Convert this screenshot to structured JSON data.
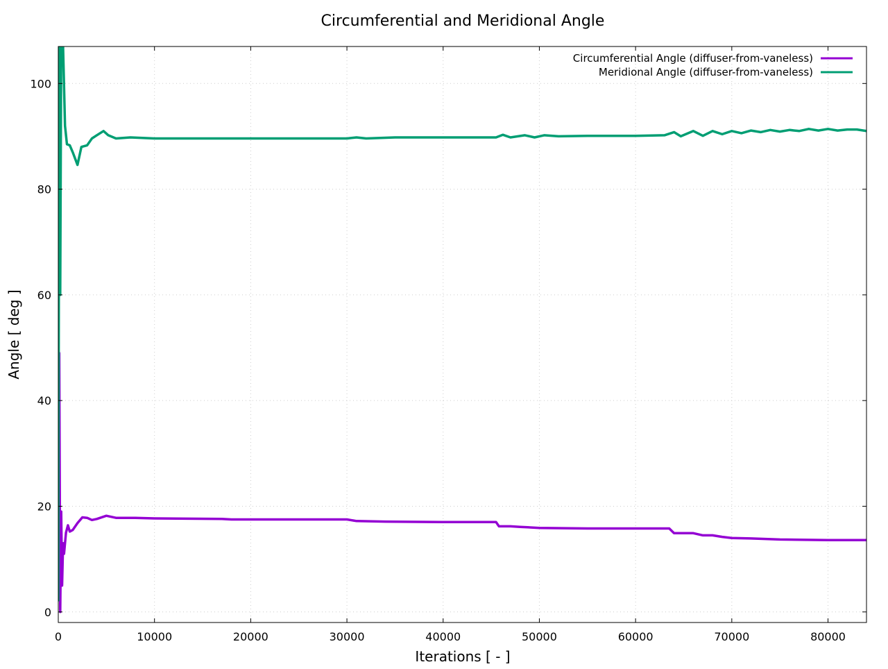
{
  "chart_data": {
    "type": "line",
    "title": "Circumferential and Meridional Angle",
    "xlabel": "Iterations [ - ]",
    "ylabel": "Angle [ deg ]",
    "xlim": [
      0,
      84000
    ],
    "ylim": [
      -2,
      107
    ],
    "xticks": [
      0,
      10000,
      20000,
      30000,
      40000,
      50000,
      60000,
      70000,
      80000
    ],
    "yticks": [
      0,
      20,
      40,
      60,
      80,
      100
    ],
    "grid": true,
    "legend_position": "top-right",
    "series": [
      {
        "name": "Circumferential Angle (diffuser-from-vaneless)",
        "color": "#9400d3",
        "x": [
          0,
          50,
          100,
          200,
          300,
          400,
          500,
          600,
          800,
          1000,
          1200,
          1500,
          2000,
          2500,
          3000,
          3500,
          4000,
          5000,
          6000,
          8000,
          10000,
          17000,
          18000,
          30000,
          31000,
          34000,
          40000,
          45500,
          45800,
          47000,
          48000,
          50000,
          55000,
          60000,
          63500,
          64000,
          66000,
          67000,
          68000,
          69000,
          70000,
          72000,
          75000,
          80000,
          84000
        ],
        "y": [
          36,
          3,
          49,
          0,
          19,
          5,
          13,
          11,
          15,
          16.4,
          15.2,
          15.5,
          16.8,
          17.9,
          17.8,
          17.4,
          17.6,
          18.2,
          17.8,
          17.8,
          17.7,
          17.6,
          17.5,
          17.5,
          17.2,
          17.1,
          17,
          17,
          16.2,
          16.2,
          16.1,
          15.9,
          15.8,
          15.8,
          15.8,
          14.9,
          14.9,
          14.5,
          14.5,
          14.2,
          14,
          13.9,
          13.7,
          13.6,
          13.6
        ]
      },
      {
        "name": "Meridional Angle (diffuser-from-vaneless)",
        "color": "#009e73",
        "x": [
          0,
          100,
          200,
          300,
          400,
          500,
          700,
          900,
          1200,
          1500,
          2000,
          2400,
          3000,
          3500,
          4000,
          4700,
          5200,
          6000,
          7500,
          10000,
          20000,
          30000,
          31000,
          32000,
          35000,
          40000,
          45500,
          46200,
          47000,
          48500,
          49500,
          50500,
          52000,
          55000,
          60000,
          63000,
          64000,
          64700,
          66000,
          67000,
          68000,
          69000,
          70000,
          71000,
          72000,
          73000,
          74000,
          75000,
          76000,
          77000,
          78000,
          79000,
          80000,
          81000,
          82000,
          83000,
          84000
        ],
        "y": [
          2,
          107,
          60,
          107,
          107,
          107,
          92,
          88.5,
          88.3,
          87,
          84.6,
          88,
          88.3,
          89.6,
          90.2,
          91,
          90.2,
          89.6,
          89.8,
          89.6,
          89.6,
          89.6,
          89.8,
          89.6,
          89.8,
          89.8,
          89.8,
          90.3,
          89.8,
          90.2,
          89.8,
          90.2,
          90,
          90.1,
          90.1,
          90.2,
          90.8,
          90,
          91,
          90.1,
          91,
          90.4,
          91,
          90.6,
          91.1,
          90.8,
          91.2,
          90.9,
          91.2,
          91,
          91.4,
          91.1,
          91.4,
          91.1,
          91.3,
          91.3,
          91
        ]
      }
    ]
  }
}
